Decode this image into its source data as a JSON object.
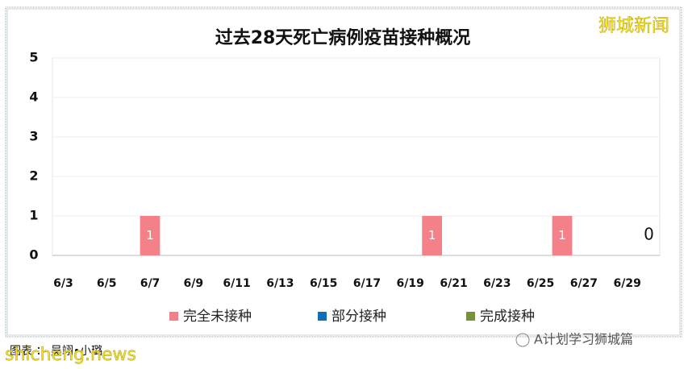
{
  "chart_data": {
    "type": "stacked_bar",
    "title": "过去28天死亡病例疫苗接种概况",
    "categories": [
      "6/3",
      null,
      "6/5",
      null,
      "6/7",
      null,
      "6/9",
      null,
      "6/11",
      null,
      "6/13",
      null,
      "6/15",
      null,
      "6/17",
      null,
      "6/19",
      null,
      "6/21",
      null,
      "6/23",
      null,
      "6/25",
      null,
      "6/27",
      null,
      "6/29",
      null
    ],
    "series": [
      {
        "name": "完全未接种",
        "color": "#f4808a",
        "values": [
          0,
          0,
          0,
          0,
          1,
          0,
          0,
          0,
          0,
          0,
          0,
          0,
          0,
          0,
          0,
          0,
          0,
          1,
          0,
          0,
          0,
          0,
          0,
          1,
          0,
          0,
          0,
          0
        ],
        "value_labels": [
          null,
          null,
          null,
          null,
          "1",
          null,
          null,
          null,
          null,
          null,
          null,
          null,
          null,
          null,
          null,
          null,
          null,
          "1",
          null,
          null,
          null,
          null,
          null,
          "1",
          null,
          null,
          null,
          "0"
        ]
      },
      {
        "name": "部分接种",
        "color": "#0f6fb8",
        "values": [
          0,
          0,
          0,
          0,
          0,
          0,
          0,
          0,
          0,
          0,
          0,
          0,
          0,
          0,
          0,
          0,
          0,
          0,
          0,
          0,
          0,
          0,
          0,
          0,
          0,
          0,
          0,
          0
        ]
      },
      {
        "name": "完成接种",
        "color": "#76923c",
        "values": [
          0,
          0,
          0,
          0,
          0,
          0,
          0,
          0,
          0,
          0,
          0,
          0,
          0,
          0,
          0,
          0,
          0,
          0,
          0,
          0,
          0,
          0,
          0,
          0,
          0,
          0,
          0,
          0
        ]
      }
    ],
    "ylim": [
      0,
      5
    ],
    "yticks": [
      0,
      1,
      2,
      3,
      4,
      5
    ],
    "grid": true,
    "legend": "bottom"
  },
  "brand": "狮城新闻",
  "credit": "图表 ： 吴翊•小璐",
  "watermark": "shicheng.news",
  "account": "A计划学习狮城篇"
}
